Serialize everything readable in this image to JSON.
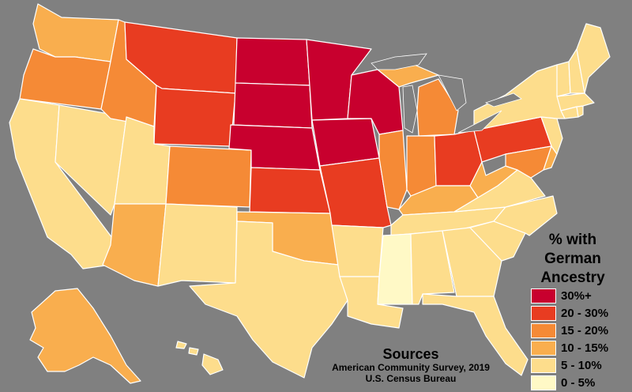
{
  "legend": {
    "title_lines": [
      "% with",
      "German",
      "Ancestry"
    ],
    "classes": [
      {
        "label": "30%+",
        "color": "#C8002E"
      },
      {
        "label": "20 - 30%",
        "color": "#E83C21"
      },
      {
        "label": "15 - 20%",
        "color": "#F58A36"
      },
      {
        "label": "10 - 15%",
        "color": "#F9AE4E"
      },
      {
        "label": "5 - 10%",
        "color": "#FDDD8C"
      },
      {
        "label": "0 - 5%",
        "color": "#FFF9C6"
      }
    ]
  },
  "sources": {
    "title": "Sources",
    "lines": [
      "American Community Survey, 2019",
      "U.S. Census Bureau"
    ]
  },
  "map": {
    "background": "#808080",
    "border_color": "#ffffff"
  }
}
